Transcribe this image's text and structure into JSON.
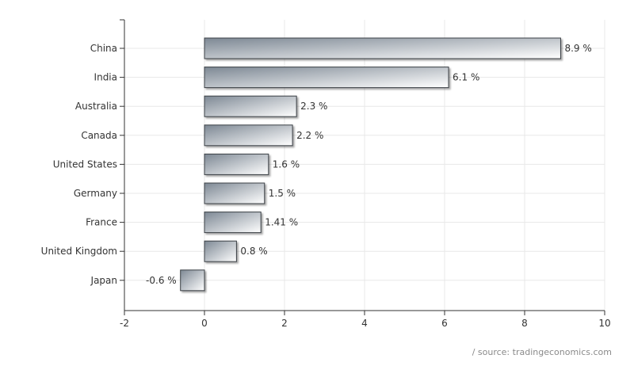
{
  "chart_data": {
    "type": "bar",
    "orientation": "horizontal",
    "categories": [
      "China",
      "India",
      "Australia",
      "Canada",
      "United States",
      "Germany",
      "France",
      "United Kingdom",
      "Japan"
    ],
    "values": [
      8.9,
      6.1,
      2.3,
      2.2,
      1.6,
      1.5,
      1.41,
      0.8,
      -0.6
    ],
    "data_labels": [
      "8.9 %",
      "6.1 %",
      "2.3 %",
      "2.2 %",
      "1.6 %",
      "1.5 %",
      "1.41 %",
      "0.8 %",
      "-0.6 %"
    ],
    "x_ticks": [
      "-2",
      "0",
      "2",
      "4",
      "6",
      "8",
      "10"
    ],
    "xlim": [
      -2,
      10
    ],
    "title": "",
    "xlabel": "",
    "ylabel": "",
    "grid": true,
    "legend": "none",
    "colors": {
      "bar_dark": "#7d8894",
      "bar_light": "#ffffff",
      "bar_border": "#3a3f44",
      "grid": "#e8e8e8",
      "axis": "#333333"
    }
  },
  "source_text": "/ source: tradingeconomics.com"
}
